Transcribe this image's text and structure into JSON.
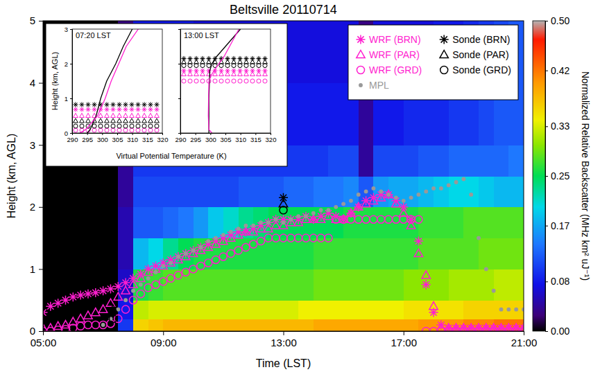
{
  "chart_data": {
    "type": "heatmap",
    "title": "Beltsville 20110714",
    "xlabel": "Time (LST)",
    "ylabel": "Height (km, AGL)",
    "xlim": [
      5,
      21
    ],
    "xticks": [
      {
        "value": 5,
        "label": "05:00"
      },
      {
        "value": 9,
        "label": "09:00"
      },
      {
        "value": 13,
        "label": "13:00"
      },
      {
        "value": 17,
        "label": "17:00"
      },
      {
        "value": 21,
        "label": "21:00"
      }
    ],
    "ylim": [
      0,
      5
    ],
    "yticks": [
      0,
      1,
      2,
      3,
      4,
      5
    ],
    "zlabel": "Normalized Relative Backscatter (MHz km² uJ⁻¹)",
    "zlim": [
      0,
      0.5
    ],
    "zticks": [
      {
        "value": 0,
        "label": "0.00"
      },
      0.08,
      0.17,
      0.25,
      0.33,
      0.42,
      {
        "value": 0.5,
        "label": "0.50"
      }
    ],
    "x_edges": [
      5,
      5.5,
      6,
      6.5,
      7,
      7.5,
      8,
      8.5,
      9,
      9.5,
      10,
      10.5,
      11,
      11.5,
      12,
      12.5,
      13,
      13.5,
      14,
      14.5,
      15,
      15.5,
      16,
      16.5,
      17,
      17.5,
      18,
      18.5,
      19,
      19.5,
      20,
      20.5,
      21
    ],
    "y_edges": [
      0,
      0.2,
      0.5,
      1,
      1.5,
      2,
      2.5,
      3,
      4,
      5
    ],
    "z": [
      [
        0,
        0,
        0,
        0,
        0,
        0,
        0,
        0,
        0
      ],
      [
        0,
        0,
        0,
        0,
        0,
        0,
        0,
        0,
        0
      ],
      [
        0,
        0,
        0,
        0,
        0,
        0,
        0,
        0,
        0
      ],
      [
        0,
        0,
        0,
        0,
        0,
        0,
        0,
        0,
        0
      ],
      [
        0,
        0,
        0,
        0,
        0,
        0,
        0,
        0,
        0
      ],
      [
        0.1,
        0.08,
        0.06,
        0.05,
        0.05,
        0.04,
        0.04,
        0.03,
        0.03
      ],
      [
        0.36,
        0.32,
        0.26,
        0.18,
        0.12,
        0.11,
        0.1,
        0.09,
        0.08
      ],
      [
        0.37,
        0.33,
        0.27,
        0.2,
        0.12,
        0.11,
        0.1,
        0.09,
        0.08
      ],
      [
        0.38,
        0.33,
        0.28,
        0.23,
        0.13,
        0.11,
        0.1,
        0.09,
        0.08
      ],
      [
        0.38,
        0.33,
        0.28,
        0.25,
        0.14,
        0.11,
        0.1,
        0.09,
        0.08
      ],
      [
        0.38,
        0.33,
        0.28,
        0.26,
        0.16,
        0.11,
        0.1,
        0.09,
        0.07
      ],
      [
        0.38,
        0.33,
        0.28,
        0.26,
        0.19,
        0.11,
        0.1,
        0.09,
        0.07
      ],
      [
        0.38,
        0.33,
        0.28,
        0.26,
        0.21,
        0.11,
        0.1,
        0.09,
        0.07
      ],
      [
        0.38,
        0.33,
        0.28,
        0.26,
        0.23,
        0.12,
        0.1,
        0.09,
        0.07
      ],
      [
        0.38,
        0.33,
        0.28,
        0.26,
        0.24,
        0.12,
        0.1,
        0.08,
        0.07
      ],
      [
        0.38,
        0.33,
        0.28,
        0.26,
        0.25,
        0.12,
        0.1,
        0.08,
        0.07
      ],
      [
        0.38,
        0.33,
        0.28,
        0.26,
        0.25,
        0.13,
        0.1,
        0.08,
        0.07
      ],
      [
        0.38,
        0.34,
        0.28,
        0.26,
        0.25,
        0.13,
        0.1,
        0.08,
        0.07
      ],
      [
        0.39,
        0.34,
        0.29,
        0.27,
        0.25,
        0.14,
        0.1,
        0.08,
        0.07
      ],
      [
        0.39,
        0.34,
        0.29,
        0.27,
        0.25,
        0.14,
        0.11,
        0.08,
        0.07
      ],
      [
        0.39,
        0.34,
        0.29,
        0.27,
        0.26,
        0.15,
        0.11,
        0.08,
        0.07
      ],
      [
        0.39,
        0.34,
        0.29,
        0.27,
        0.26,
        0.12,
        0.04,
        0.04,
        0.03
      ],
      [
        0.39,
        0.34,
        0.29,
        0.27,
        0.26,
        0.16,
        0.11,
        0.08,
        0.07
      ],
      [
        0.39,
        0.34,
        0.29,
        0.27,
        0.26,
        0.17,
        0.11,
        0.08,
        0.07
      ],
      [
        0.39,
        0.35,
        0.3,
        0.27,
        0.26,
        0.17,
        0.11,
        0.09,
        0.07
      ],
      [
        0.4,
        0.35,
        0.3,
        0.28,
        0.27,
        0.18,
        0.12,
        0.09,
        0.07
      ],
      [
        0.4,
        0.35,
        0.3,
        0.28,
        0.27,
        0.19,
        0.12,
        0.09,
        0.08
      ],
      [
        0.4,
        0.35,
        0.31,
        0.28,
        0.27,
        0.2,
        0.13,
        0.1,
        0.08
      ],
      [
        0.41,
        0.36,
        0.31,
        0.28,
        0.28,
        0.2,
        0.13,
        0.1,
        0.09
      ],
      [
        0.41,
        0.36,
        0.31,
        0.29,
        0.28,
        0.19,
        0.13,
        0.11,
        0.1
      ],
      [
        0.42,
        0.36,
        0.32,
        0.29,
        0.28,
        0.18,
        0.13,
        0.12,
        0.11
      ],
      [
        0.42,
        0.36,
        0.32,
        0.29,
        0.28,
        0.18,
        0.14,
        0.12,
        0.12
      ]
    ],
    "x": [
      5,
      5.25,
      5.5,
      5.75,
      6,
      6.25,
      6.5,
      6.75,
      7,
      7.25,
      7.5,
      7.75,
      8,
      8.25,
      8.5,
      8.75,
      9,
      9.25,
      9.5,
      9.75,
      10,
      10.25,
      10.5,
      10.75,
      11,
      11.25,
      11.5,
      11.75,
      12,
      12.25,
      12.5,
      12.75,
      13,
      13.25,
      13.5,
      13.75,
      14,
      14.25,
      14.5,
      14.75,
      15,
      15.25,
      15.5,
      15.75,
      16,
      16.25,
      16.5,
      16.75,
      17,
      17.25,
      17.5,
      17.75,
      18,
      18.25,
      18.5,
      18.75,
      19,
      19.25,
      19.5,
      19.75,
      20,
      20.25,
      20.5,
      20.75,
      21
    ],
    "legend": "upper right",
    "series": [
      {
        "name": "WRF (BRN)",
        "type": "scatter",
        "color": "#ff1ecf",
        "marker": "asterisk",
        "values": [
          0.3,
          0.4,
          0.45,
          0.5,
          0.55,
          0.58,
          0.6,
          0.62,
          0.65,
          0.68,
          0.72,
          0.78,
          0.85,
          0.92,
          1.0,
          1.05,
          1.1,
          1.15,
          1.2,
          1.25,
          1.3,
          1.35,
          1.4,
          1.45,
          1.5,
          1.55,
          1.6,
          1.6,
          1.65,
          1.7,
          1.75,
          1.8,
          1.8,
          1.8,
          1.8,
          1.85,
          1.8,
          1.85,
          1.9,
          1.85,
          1.8,
          1.9,
          2.0,
          2.1,
          2.15,
          2.2,
          2.2,
          2.1,
          2.0,
          1.8,
          1.45,
          0.75,
          0.3,
          0.1,
          0.05,
          0.05,
          0.05,
          0.05,
          0.05,
          0.05,
          0.05,
          0.05,
          0.05,
          0.05,
          0.05
        ]
      },
      {
        "name": "WRF (PAR)",
        "type": "scatter",
        "color": "#ff1ecf",
        "marker": "triangle",
        "values": [
          0.05,
          0.05,
          0.08,
          0.1,
          0.15,
          0.2,
          0.25,
          0.3,
          0.35,
          0.45,
          0.55,
          0.65,
          0.75,
          0.85,
          0.95,
          1.0,
          1.05,
          1.1,
          1.15,
          1.2,
          1.25,
          1.3,
          1.35,
          1.4,
          1.45,
          1.5,
          1.55,
          1.6,
          1.6,
          1.65,
          1.65,
          1.7,
          1.7,
          1.75,
          1.75,
          1.8,
          1.8,
          1.8,
          1.85,
          1.8,
          1.8,
          1.9,
          2.0,
          2.05,
          2.1,
          2.15,
          2.2,
          2.05,
          1.9,
          1.7,
          1.25,
          0.9,
          0.4,
          0.05,
          0.05,
          0.05,
          0.05,
          0.05,
          0.05,
          0.05,
          0.05,
          0.05,
          0.05,
          0.05,
          0.05
        ]
      },
      {
        "name": "WRF (GRD)",
        "type": "scatter",
        "color": "#ff1ecf",
        "marker": "circle",
        "values": [
          0.0,
          0.0,
          0.02,
          0.03,
          0.05,
          0.08,
          0.1,
          0.1,
          0.1,
          0.12,
          0.2,
          0.35,
          0.5,
          0.6,
          0.7,
          0.75,
          0.8,
          0.85,
          0.9,
          0.95,
          1.0,
          1.05,
          1.1,
          1.15,
          1.2,
          1.25,
          1.3,
          1.35,
          1.4,
          1.45,
          1.5,
          1.5,
          1.5,
          1.5,
          1.5,
          1.5,
          1.5,
          1.5,
          1.5,
          1.8,
          1.8,
          1.8,
          1.8,
          1.8,
          1.8,
          1.8,
          1.8,
          1.8,
          1.8,
          1.8,
          1.8,
          0.0,
          0.0,
          0.0,
          0.0,
          0.0,
          0.0,
          0.0,
          0.0,
          0.0,
          0.0,
          0.0,
          0.0,
          0.0,
          0.0
        ]
      },
      {
        "name": "MPL",
        "type": "scatter",
        "color": "#999999",
        "marker": "dot",
        "values": [
          null,
          null,
          null,
          null,
          null,
          null,
          null,
          null,
          0.1,
          0.2,
          0.35,
          0.5,
          0.65,
          0.75,
          0.85,
          0.95,
          1.05,
          1.1,
          1.2,
          1.25,
          1.3,
          1.35,
          1.45,
          1.5,
          1.55,
          1.6,
          1.65,
          1.7,
          1.7,
          1.75,
          1.75,
          1.8,
          1.75,
          1.8,
          1.85,
          1.85,
          1.9,
          1.95,
          1.95,
          2.0,
          2.05,
          2.1,
          2.2,
          2.25,
          2.3,
          2.25,
          2.2,
          2.15,
          2.1,
          2.15,
          2.2,
          2.25,
          2.3,
          2.3,
          2.35,
          2.4,
          2.45,
          2.2,
          1.5,
          1.0,
          0.65,
          0.35,
          0.35,
          0.35,
          0.35
        ]
      },
      {
        "name": "Sonde (BRN)",
        "type": "scatter",
        "color": "#000000",
        "marker": "asterisk",
        "x": [
          7.333,
          13
        ],
        "values": [
          0.82,
          2.15
        ]
      },
      {
        "name": "Sonde (PAR)",
        "type": "scatter",
        "color": "#000000",
        "marker": "triangle",
        "x": [
          7.333,
          13
        ],
        "values": [
          0.35,
          2.05
        ]
      },
      {
        "name": "Sonde (GRD)",
        "type": "scatter",
        "color": "#000000",
        "marker": "circle",
        "x": [
          7.333,
          13
        ],
        "values": [
          0.2,
          1.95
        ]
      }
    ],
    "inset": {
      "type": "line",
      "xlabel": "Virtual Potential Temperature (K)",
      "ylabel": "Height (km, AGL)",
      "xlim": [
        290,
        320
      ],
      "xticks": [
        290,
        295,
        300,
        305,
        310,
        315,
        320
      ],
      "ylim": [
        0,
        3
      ],
      "yticks": [
        0,
        1,
        2,
        3
      ],
      "panels": [
        {
          "title": "07:20 LST",
          "profiles": [
            {
              "color": "#000000",
              "x": [
                295,
                296,
                297,
                298,
                299.5,
                301.5,
                304.5,
                307,
                310
              ],
              "y": [
                0,
                0.1,
                0.3,
                0.5,
                1.0,
                1.5,
                2.0,
                2.5,
                3.0
              ]
            },
            {
              "color": "#ff1ecf",
              "x": [
                292.5,
                294.5,
                296.5,
                298.5,
                301,
                303,
                305.5,
                308,
                312
              ],
              "y": [
                0,
                0.1,
                0.3,
                0.5,
                1.0,
                1.5,
                2.0,
                2.5,
                3.0
              ]
            }
          ],
          "pbl": [
            0.68,
            0.5,
            0.08,
            null,
            0.82,
            0.35,
            0.2
          ]
        },
        {
          "title": "13:00 LST",
          "profiles": [
            {
              "color": "#000000",
              "x": [
                299.5,
                299.5,
                299.5,
                299.8,
                300.5,
                302,
                304,
                307,
                310
              ],
              "y": [
                0,
                0.5,
                1.0,
                1.8,
                2.0,
                2.2,
                2.4,
                2.7,
                3.0
              ]
            },
            {
              "color": "#ff1ecf",
              "x": [
                300.5,
                299.5,
                299.3,
                299.5,
                300.5,
                302,
                304.5,
                307,
                309.5
              ],
              "y": [
                0,
                0.1,
                0.5,
                1.5,
                1.7,
                1.9,
                2.2,
                2.6,
                3.0
              ]
            }
          ],
          "pbl": [
            1.8,
            1.7,
            1.5,
            null,
            2.15,
            2.05,
            1.95
          ]
        }
      ]
    }
  }
}
